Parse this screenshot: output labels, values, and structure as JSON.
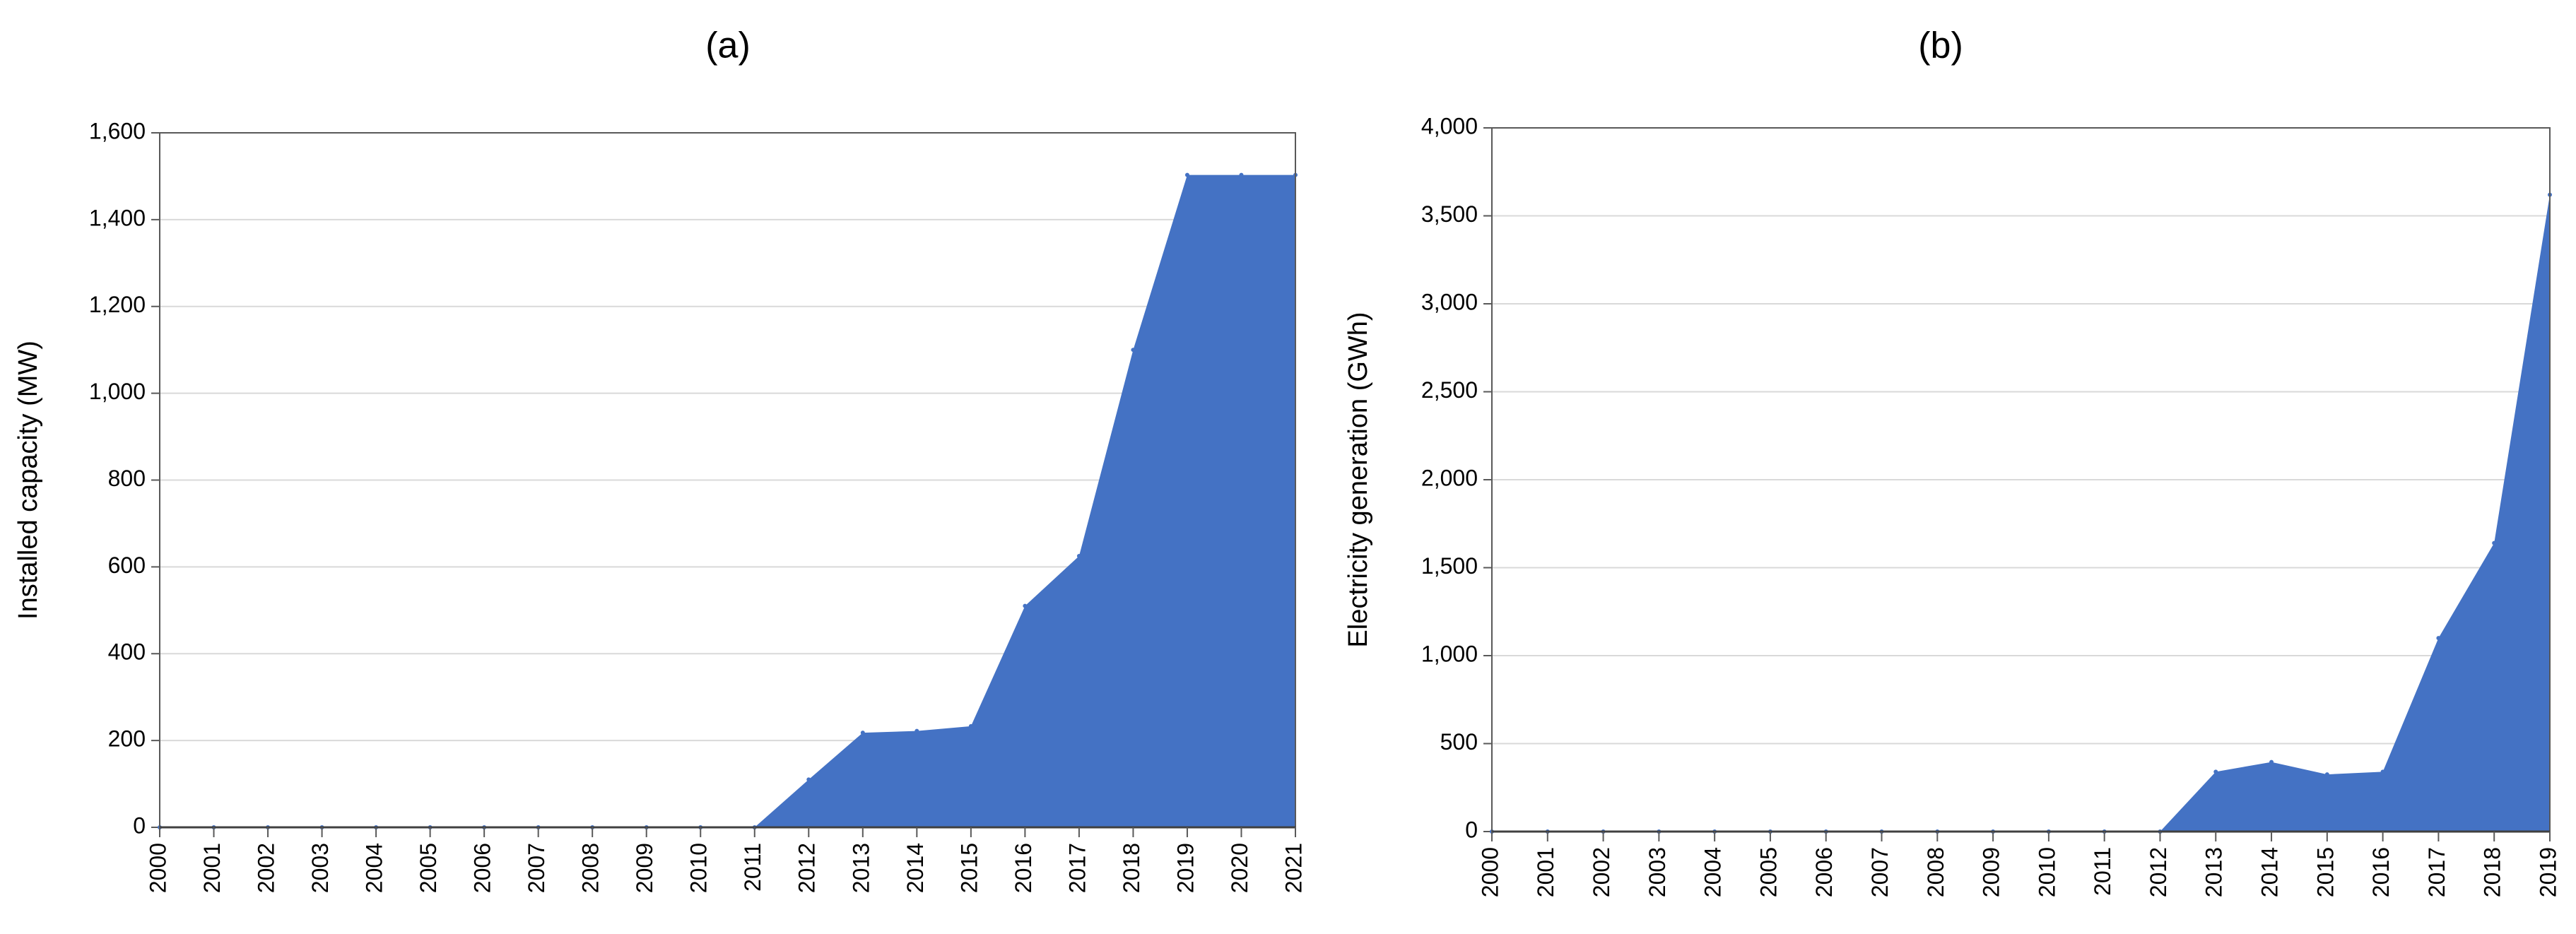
{
  "chart_data": [
    {
      "type": "area",
      "title": "(a)",
      "xlabel": "",
      "ylabel": "Installed capacity (MW)",
      "x": [
        "2000",
        "2001",
        "2002",
        "2003",
        "2004",
        "2005",
        "2006",
        "2007",
        "2008",
        "2009",
        "2010",
        "2011",
        "2012",
        "2013",
        "2014",
        "2015",
        "2016",
        "2017",
        "2018",
        "2019",
        "2020",
        "2021"
      ],
      "values": [
        0,
        0,
        0,
        0,
        0,
        0,
        0,
        0,
        0,
        0,
        0,
        0,
        110,
        218,
        222,
        233,
        510,
        625,
        1100,
        1503,
        1503,
        1503
      ],
      "ylim": [
        0,
        1600
      ],
      "yticks": [
        0,
        200,
        400,
        600,
        800,
        1000,
        1200,
        1400,
        1600
      ],
      "ytick_labels": [
        "0",
        "200",
        "400",
        "600",
        "800",
        "1,000",
        "1,200",
        "1,400",
        "1,600"
      ],
      "color": "#4472C4",
      "grid": true
    },
    {
      "type": "area",
      "title": "(b)",
      "xlabel": "",
      "ylabel": "Electricity generation (GWh)",
      "x": [
        "2000",
        "2001",
        "2002",
        "2003",
        "2004",
        "2005",
        "2006",
        "2007",
        "2008",
        "2009",
        "2010",
        "2011",
        "2012",
        "2013",
        "2014",
        "2015",
        "2016",
        "2017",
        "2018",
        "2019"
      ],
      "values": [
        0,
        0,
        0,
        0,
        0,
        0,
        0,
        0,
        0,
        0,
        0,
        0,
        0,
        340,
        395,
        325,
        340,
        1100,
        1640,
        3620
      ],
      "ylim": [
        0,
        4000
      ],
      "yticks": [
        0,
        500,
        1000,
        1500,
        2000,
        2500,
        3000,
        3500,
        4000
      ],
      "ytick_labels": [
        "0",
        "500",
        "1,000",
        "1,500",
        "2,000",
        "2,500",
        "3,000",
        "3,500",
        "4,000"
      ],
      "color": "#4472C4",
      "grid": true
    }
  ]
}
